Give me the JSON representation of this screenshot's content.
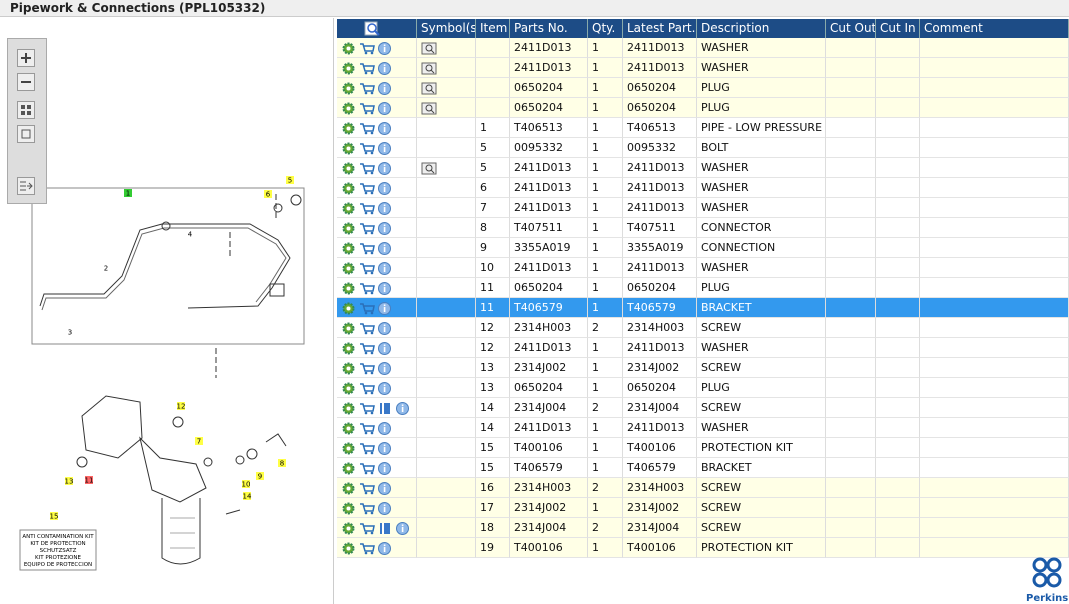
{
  "header": {
    "title": "Pipework & Connections (PPL105332)"
  },
  "table": {
    "columns": [
      "Symbol(s)",
      "Item",
      "Parts No.",
      "Qty.",
      "Latest Part...",
      "Description",
      "Cut Out",
      "Cut In",
      "Comment"
    ],
    "rows": [
      {
        "symbol": true,
        "highlight": true,
        "parts_no": "2411D013",
        "qty": "1",
        "latest": "2411D013",
        "description": "WASHER"
      },
      {
        "symbol": true,
        "highlight": true,
        "parts_no": "2411D013",
        "qty": "1",
        "latest": "2411D013",
        "description": "WASHER"
      },
      {
        "symbol": true,
        "highlight": true,
        "parts_no": "0650204",
        "qty": "1",
        "latest": "0650204",
        "description": "PLUG"
      },
      {
        "symbol": true,
        "highlight": true,
        "parts_no": "0650204",
        "qty": "1",
        "latest": "0650204",
        "description": "PLUG"
      },
      {
        "item": "1",
        "parts_no": "T406513",
        "qty": "1",
        "latest": "T406513",
        "description": "PIPE - LOW PRESSURE FU"
      },
      {
        "item": "5",
        "parts_no": "0095332",
        "qty": "1",
        "latest": "0095332",
        "description": "BOLT"
      },
      {
        "symbol": true,
        "item": "5",
        "parts_no": "2411D013",
        "qty": "1",
        "latest": "2411D013",
        "description": "WASHER"
      },
      {
        "item": "6",
        "parts_no": "2411D013",
        "qty": "1",
        "latest": "2411D013",
        "description": "WASHER"
      },
      {
        "item": "7",
        "parts_no": "2411D013",
        "qty": "1",
        "latest": "2411D013",
        "description": "WASHER"
      },
      {
        "item": "8",
        "parts_no": "T407511",
        "qty": "1",
        "latest": "T407511",
        "description": "CONNECTOR"
      },
      {
        "item": "9",
        "parts_no": "3355A019",
        "qty": "1",
        "latest": "3355A019",
        "description": "CONNECTION"
      },
      {
        "item": "10",
        "parts_no": "2411D013",
        "qty": "1",
        "latest": "2411D013",
        "description": "WASHER"
      },
      {
        "item": "11",
        "parts_no": "0650204",
        "qty": "1",
        "latest": "0650204",
        "description": "PLUG"
      },
      {
        "selected": true,
        "item": "11",
        "parts_no": "T406579",
        "qty": "1",
        "latest": "T406579",
        "description": "BRACKET"
      },
      {
        "item": "12",
        "parts_no": "2314H003",
        "qty": "2",
        "latest": "2314H003",
        "description": "SCREW"
      },
      {
        "item": "12",
        "parts_no": "2411D013",
        "qty": "1",
        "latest": "2411D013",
        "description": "WASHER"
      },
      {
        "item": "13",
        "parts_no": "2314J002",
        "qty": "1",
        "latest": "2314J002",
        "description": "SCREW"
      },
      {
        "item": "13",
        "parts_no": "0650204",
        "qty": "1",
        "latest": "0650204",
        "description": "PLUG"
      },
      {
        "manual": true,
        "item": "14",
        "parts_no": "2314J004",
        "qty": "2",
        "latest": "2314J004",
        "description": "SCREW"
      },
      {
        "item": "14",
        "parts_no": "2411D013",
        "qty": "1",
        "latest": "2411D013",
        "description": "WASHER"
      },
      {
        "item": "15",
        "parts_no": "T400106",
        "qty": "1",
        "latest": "T400106",
        "description": "PROTECTION KIT"
      },
      {
        "item": "15",
        "parts_no": "T406579",
        "qty": "1",
        "latest": "T406579",
        "description": "BRACKET"
      },
      {
        "highlight": true,
        "item": "16",
        "parts_no": "2314H003",
        "qty": "2",
        "latest": "2314H003",
        "description": "SCREW"
      },
      {
        "highlight": true,
        "item": "17",
        "parts_no": "2314J002",
        "qty": "1",
        "latest": "2314J002",
        "description": "SCREW"
      },
      {
        "highlight": true,
        "manual": true,
        "item": "18",
        "parts_no": "2314J004",
        "qty": "2",
        "latest": "2314J004",
        "description": "SCREW"
      },
      {
        "highlight": true,
        "item": "19",
        "parts_no": "T400106",
        "qty": "1",
        "latest": "T400106",
        "description": "PROTECTION KIT"
      }
    ]
  },
  "diagram": {
    "callouts": [
      "1",
      "2",
      "3",
      "4",
      "5",
      "6",
      "7",
      "8",
      "9",
      "10",
      "11",
      "12",
      "13",
      "14",
      "15"
    ],
    "kit_label": [
      "ANTI CONTAMINATION KIT",
      "KIT DE PROTECTION",
      "SCHUTZSATZ",
      "KIT PROTEZIONE",
      "EQUIPO DE PROTECCION"
    ]
  },
  "logo": "Perkins"
}
